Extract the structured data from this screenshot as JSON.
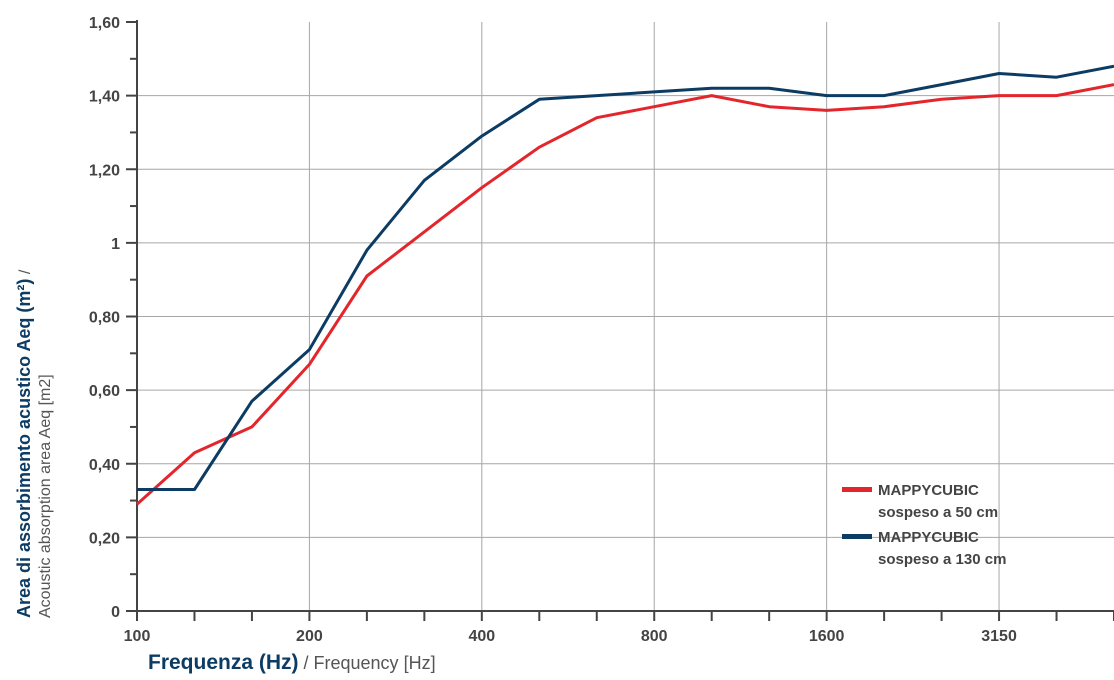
{
  "chart_data": {
    "type": "line",
    "title": "",
    "xlabel_bold": "Frequenza (Hz)",
    "xlabel_rest": " / Frequency [Hz]",
    "ylabel_bold": "Area di assorbimento acustico Aeq (m²)",
    "ylabel_rest": " / ",
    "ylabel_line2": "Acoustic absorption area Aeq [m2]",
    "x": [
      100,
      125,
      160,
      200,
      250,
      315,
      400,
      500,
      630,
      800,
      1000,
      1250,
      1600,
      2000,
      2500,
      3150,
      4000,
      5000
    ],
    "x_tick_labels": [
      {
        "x": 100,
        "label": "100"
      },
      {
        "x": 200,
        "label": "200"
      },
      {
        "x": 400,
        "label": "400"
      },
      {
        "x": 800,
        "label": "800"
      },
      {
        "x": 1600,
        "label": "1600"
      },
      {
        "x": 3150,
        "label": "3150"
      }
    ],
    "y_ticks": [
      {
        "value": 0,
        "label": "0"
      },
      {
        "value": 0.2,
        "label": "0,20"
      },
      {
        "value": 0.4,
        "label": "0,40"
      },
      {
        "value": 0.6,
        "label": "0,60"
      },
      {
        "value": 0.8,
        "label": "0,80"
      },
      {
        "value": 1.0,
        "label": "1"
      },
      {
        "value": 1.2,
        "label": "1,20"
      },
      {
        "value": 1.4,
        "label": "1,40"
      },
      {
        "value": 1.6,
        "label": "1,60"
      }
    ],
    "ylim": [
      0,
      1.6
    ],
    "x_scale": "log",
    "grid": true,
    "legend_position": "bottom-right",
    "series": [
      {
        "name_line1": "MAPPYCUBIC",
        "name_line2": "sospeso a 50 cm",
        "color": "#e3262c",
        "values": [
          0.29,
          0.43,
          0.5,
          0.67,
          0.91,
          1.03,
          1.15,
          1.26,
          1.34,
          1.37,
          1.4,
          1.37,
          1.36,
          1.37,
          1.39,
          1.4,
          1.4,
          1.43
        ]
      },
      {
        "name_line1": "MAPPYCUBIC",
        "name_line2": "sospeso a 130 cm",
        "color": "#0c3c63",
        "values": [
          0.33,
          0.33,
          0.57,
          0.71,
          0.98,
          1.17,
          1.29,
          1.39,
          1.4,
          1.41,
          1.42,
          1.42,
          1.4,
          1.4,
          1.43,
          1.46,
          1.45,
          1.48
        ]
      }
    ]
  }
}
